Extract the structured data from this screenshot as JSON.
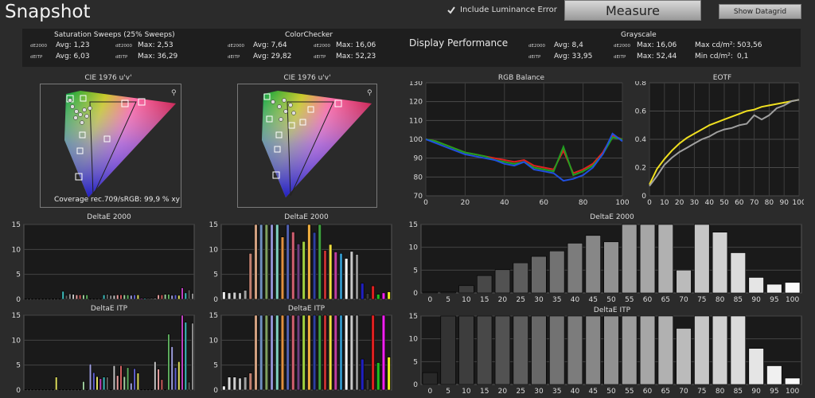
{
  "app": {
    "title": "Snapshot"
  },
  "toolbar": {
    "luminance_label": "Include Luminance Error",
    "measure_label": "Measure",
    "datagrid_label": "Show Datagrid"
  },
  "stats": {
    "saturation": {
      "title": "Saturation Sweeps (25% Sweeps)",
      "l1": "dE2000",
      "avg1": "Avg: 1,23",
      "l2": "dE2000",
      "max1": "Max: 2,53",
      "l3": "dEITP",
      "avg2": "Avg: 6,03",
      "l4": "dEITP",
      "max2": "Max: 36,29"
    },
    "colorchecker": {
      "title": "ColorChecker",
      "l1": "dE2000",
      "avg1": "Avg: 7,64",
      "l2": "dE2000",
      "max1": "Max: 16,06",
      "l3": "dEITP",
      "avg2": "Avg: 29,82",
      "l4": "dEITP",
      "max2": "Max: 52,23"
    },
    "display_performance": "Display Performance",
    "grayscale": {
      "title": "Grayscale",
      "l1": "dE2000",
      "avg1": "Avg: 8,4",
      "l2": "dE2000",
      "max1": "Max: 16,06",
      "l3": "dEITP",
      "avg2": "Avg: 33,95",
      "l4": "dEITP",
      "max2": "Max: 52,44",
      "maxcd": "Max cd/m²:",
      "maxcd_v": "503,56",
      "mincd": "Min cd/m²:",
      "mincd_v": "0,1"
    }
  },
  "cie": {
    "left_title": "CIE 1976 u'v'",
    "right_title": "CIE 1976 u'v'",
    "coverage": "Coverage rec.709/sRGB:  99,9 % xy"
  },
  "colors": {
    "red": "#e02020",
    "green": "#20a020",
    "blue": "#2050e0",
    "yellow": "#f0e020",
    "gray": "#a0a0a0"
  },
  "chart_data": [
    {
      "type": "line",
      "title": "RGB Balance",
      "x": [
        0,
        5,
        10,
        15,
        20,
        25,
        30,
        35,
        40,
        45,
        50,
        55,
        60,
        65,
        70,
        75,
        80,
        85,
        90,
        95,
        100
      ],
      "series": [
        {
          "values": [
            100,
            99,
            97,
            95,
            93,
            92,
            91,
            90,
            89,
            88,
            89,
            86,
            85,
            84,
            94,
            82,
            84,
            87,
            93,
            102,
            100
          ]
        },
        {
          "values": [
            100,
            99,
            97,
            95,
            93,
            92,
            91,
            89,
            88,
            87,
            88,
            85,
            84,
            83,
            96,
            81,
            83,
            86,
            92,
            101,
            100
          ]
        },
        {
          "values": [
            100,
            98,
            96,
            94,
            92,
            91,
            90,
            89,
            87,
            86,
            88,
            84,
            83,
            82,
            78,
            79,
            81,
            85,
            92,
            103,
            99
          ]
        }
      ],
      "xlim": [
        0,
        100
      ],
      "ylim": [
        70,
        130
      ],
      "xticks": [
        0,
        20,
        40,
        60,
        80,
        100
      ],
      "yticks": [
        70,
        80,
        90,
        100,
        110,
        120,
        130
      ]
    },
    {
      "type": "line",
      "title": "EOTF",
      "x": [
        0,
        5,
        10,
        15,
        20,
        25,
        30,
        35,
        40,
        45,
        50,
        55,
        60,
        65,
        70,
        75,
        80,
        85,
        90,
        95,
        100
      ],
      "series": [
        {
          "values": [
            0.08,
            0.19,
            0.26,
            0.32,
            0.37,
            0.41,
            0.44,
            0.47,
            0.5,
            0.52,
            0.54,
            0.56,
            0.58,
            0.6,
            0.61,
            0.63,
            0.64,
            0.65,
            0.66,
            0.67,
            0.68
          ]
        },
        {
          "values": [
            0.07,
            0.14,
            0.22,
            0.27,
            0.31,
            0.34,
            0.37,
            0.4,
            0.42,
            0.45,
            0.47,
            0.48,
            0.5,
            0.51,
            0.57,
            0.54,
            0.57,
            0.62,
            0.64,
            0.67,
            0.68
          ]
        }
      ],
      "xlim": [
        0,
        100
      ],
      "ylim": [
        0,
        0.8
      ],
      "xticks": [
        0,
        10,
        20,
        30,
        40,
        50,
        60,
        70,
        80,
        90,
        100
      ],
      "yticks": [
        0,
        0.2,
        0.4,
        0.6,
        0.8
      ]
    },
    {
      "type": "bar",
      "title": "DeltaE 2000",
      "categories": [
        "0",
        "5",
        "10",
        "15",
        "20",
        "25",
        "30",
        "35",
        "40",
        "45",
        "50",
        "55",
        "60",
        "65",
        "70",
        "75",
        "80",
        "85",
        "90",
        "95",
        "100"
      ],
      "values": [
        0.2,
        0.2,
        1.6,
        3.8,
        5.1,
        6.6,
        8.0,
        9.2,
        10.9,
        12.6,
        11.2,
        15.8,
        15.8,
        15.8,
        5.0,
        15.8,
        13.3,
        8.8,
        3.4,
        1.9,
        2.3
      ],
      "ylim": [
        0,
        15
      ],
      "yticks": [
        0,
        5,
        10,
        15
      ]
    },
    {
      "type": "bar",
      "title": "DeltaE ITP",
      "categories": [
        "0",
        "5",
        "10",
        "15",
        "20",
        "25",
        "30",
        "35",
        "40",
        "45",
        "50",
        "55",
        "60",
        "65",
        "70",
        "75",
        "80",
        "85",
        "90",
        "95",
        "100"
      ],
      "values": [
        2.6,
        15.8,
        15.8,
        15.8,
        15.8,
        15.8,
        15.8,
        15.8,
        15.8,
        15.8,
        15.8,
        15.8,
        15.8,
        15.8,
        12.3,
        15.8,
        15.8,
        15.8,
        7.9,
        4.1,
        1.4
      ],
      "ylim": [
        0,
        15
      ],
      "yticks": [
        0,
        5,
        10,
        15
      ]
    },
    {
      "type": "bar",
      "title": "DeltaE 2000",
      "values": [
        0.1,
        0.1,
        0.1,
        0.1,
        0.1,
        0.1,
        0.1,
        0.1,
        0.1,
        0.1,
        0.1,
        1.6,
        0.8,
        1.1,
        1.0,
        0.9,
        0.9,
        0.9,
        0.9,
        0.1,
        0.1,
        0.1,
        0.1,
        0.9,
        1.0,
        0.8,
        0.8,
        0.9,
        0.9,
        0.9,
        0.9,
        0.8,
        0.9,
        0.9,
        0.2,
        0.2,
        0.2,
        0.2,
        0.2,
        0.9,
        0.9,
        1.0,
        1.0,
        0.8,
        0.9,
        0.8,
        2.3,
        1.3,
        1.9,
        1.2
      ],
      "ylim": [
        0,
        15
      ],
      "yticks": [
        0,
        5,
        10,
        15
      ]
    },
    {
      "type": "bar",
      "title": "DeltaE ITP",
      "values": [
        0.1,
        0.1,
        0.1,
        0.1,
        0.1,
        0.1,
        0.1,
        0.1,
        0.1,
        2.6,
        0.1,
        0.1,
        0.1,
        0.1,
        0.1,
        0.1,
        0.1,
        1.7,
        0.1,
        5.2,
        3.5,
        2.7,
        2.3,
        2.6,
        2.6,
        0.1,
        4.9,
        2.9,
        4.9,
        2.7,
        4.5,
        1.4,
        4.3,
        3.4,
        0.1,
        0.1,
        0.1,
        0.1,
        5.7,
        4.2,
        2.1,
        0.1,
        11.2,
        8.7,
        4.5,
        5.7,
        15.8,
        13.6,
        1.6,
        13.4
      ],
      "ylim": [
        0,
        15
      ],
      "yticks": [
        0,
        5,
        10,
        15
      ]
    },
    {
      "type": "bar",
      "title": "DeltaE 2000",
      "values": [
        1.5,
        1.3,
        1.4,
        1.3,
        1.8,
        9.2,
        15.8,
        15.8,
        15.3,
        15.0,
        15.8,
        12.5,
        15.8,
        13.5,
        11.1,
        11.6,
        15.8,
        13.4,
        15.8,
        9.8,
        11.0,
        9.5,
        9.2,
        8.2,
        9.6,
        9.0,
        3.2,
        1.2,
        2.7,
        1.0,
        1.3,
        1.5
      ],
      "ylim": [
        0,
        15
      ],
      "yticks": [
        0,
        5,
        10,
        15
      ]
    },
    {
      "type": "bar",
      "title": "DeltaE ITP",
      "values": [
        0.8,
        2.6,
        2.6,
        2.4,
        2.6,
        3.4,
        15.8,
        15.8,
        15.8,
        15.8,
        15.8,
        15.8,
        15.8,
        15.8,
        15.8,
        15.8,
        15.8,
        15.8,
        15.8,
        15.8,
        15.8,
        15.8,
        15.8,
        15.8,
        15.8,
        15.8,
        6.2,
        2.1,
        15.8,
        5.5,
        15.8,
        6.6
      ],
      "ylim": [
        0,
        15
      ],
      "yticks": [
        0,
        5,
        10,
        15
      ]
    }
  ]
}
